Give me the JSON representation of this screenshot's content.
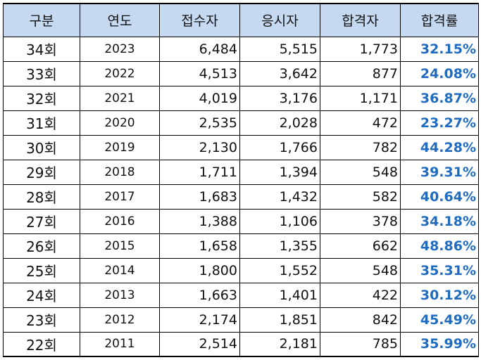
{
  "table": {
    "headers": [
      "구분",
      "연도",
      "접수자",
      "응시자",
      "합격자",
      "합격률"
    ],
    "rows": [
      [
        "34회",
        "2023",
        "6,484",
        "5,515",
        "1,773",
        "32.15%"
      ],
      [
        "33회",
        "2022",
        "4,513",
        "3,642",
        "877",
        "24.08%"
      ],
      [
        "32회",
        "2021",
        "4,019",
        "3,176",
        "1,171",
        "36.87%"
      ],
      [
        "31회",
        "2020",
        "2,535",
        "2,028",
        "472",
        "23.27%"
      ],
      [
        "30회",
        "2019",
        "2,130",
        "1,766",
        "782",
        "44.28%"
      ],
      [
        "29회",
        "2018",
        "1,711",
        "1,394",
        "548",
        "39.31%"
      ],
      [
        "28회",
        "2017",
        "1,683",
        "1,432",
        "582",
        "40.64%"
      ],
      [
        "27회",
        "2016",
        "1,388",
        "1,106",
        "378",
        "34.18%"
      ],
      [
        "26회",
        "2015",
        "1,658",
        "1,355",
        "662",
        "48.86%"
      ],
      [
        "25회",
        "2014",
        "1,800",
        "1,552",
        "548",
        "35.31%"
      ],
      [
        "24회",
        "2013",
        "1,663",
        "1,401",
        "422",
        "30.12%"
      ],
      [
        "23회",
        "2012",
        "2,174",
        "1,851",
        "842",
        "45.49%"
      ],
      [
        "22회",
        "2011",
        "2,514",
        "2,181",
        "785",
        "35.99%"
      ]
    ]
  },
  "colors": {
    "header_bg": "#c5d9f1",
    "rate_text": "#1f6bbf",
    "border": "#000000"
  }
}
